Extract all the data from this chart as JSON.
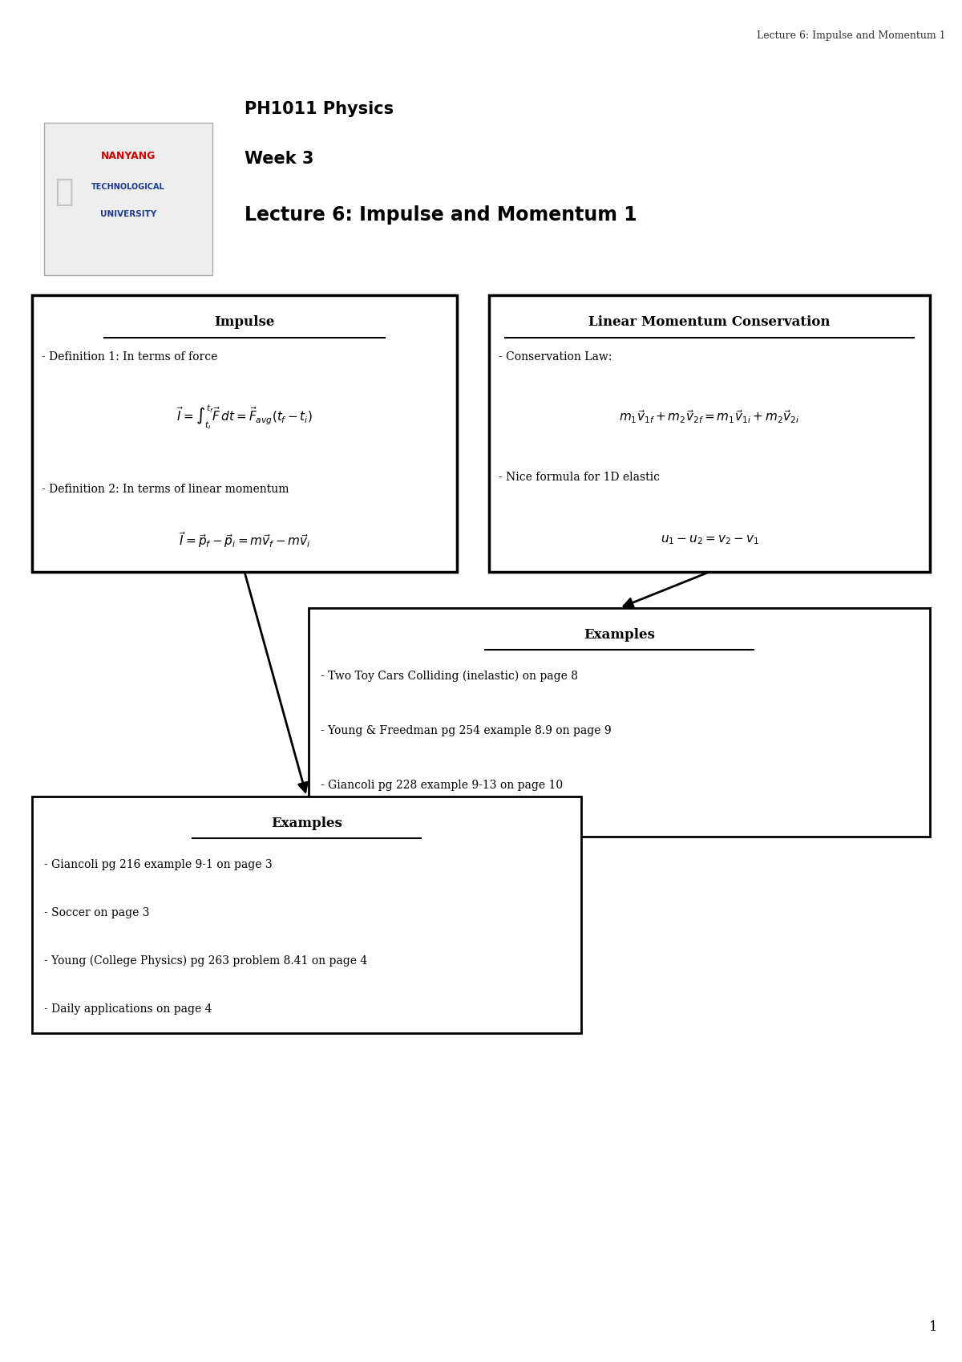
{
  "page_header": "Lecture 6: Impulse and Momentum 1",
  "page_number": "1",
  "course_line1": "PH1011 Physics",
  "course_line2": "Week 3",
  "course_line3": "Lecture 6: Impulse and Momentum 1",
  "box1_title": "Impulse",
  "box2_title": "Linear Momentum Conservation",
  "box3_title": "Examples",
  "box4_title": "Examples",
  "box3_lines": [
    "- Two Toy Cars Colliding (inelastic) on page 8",
    "- Young & Freedman pg 254 example 8.9 on page 9",
    "- Giancoli pg 228 example 9-13 on page 10"
  ],
  "box4_lines": [
    "- Giancoli pg 216 example 9-1 on page 3",
    "- Soccer on page 3",
    "- Young (College Physics) pg 263 problem 8.41 on page 4",
    "- Daily applications on page 4"
  ],
  "bg_color": "#ffffff",
  "box_edge_color": "#000000",
  "text_color": "#000000"
}
